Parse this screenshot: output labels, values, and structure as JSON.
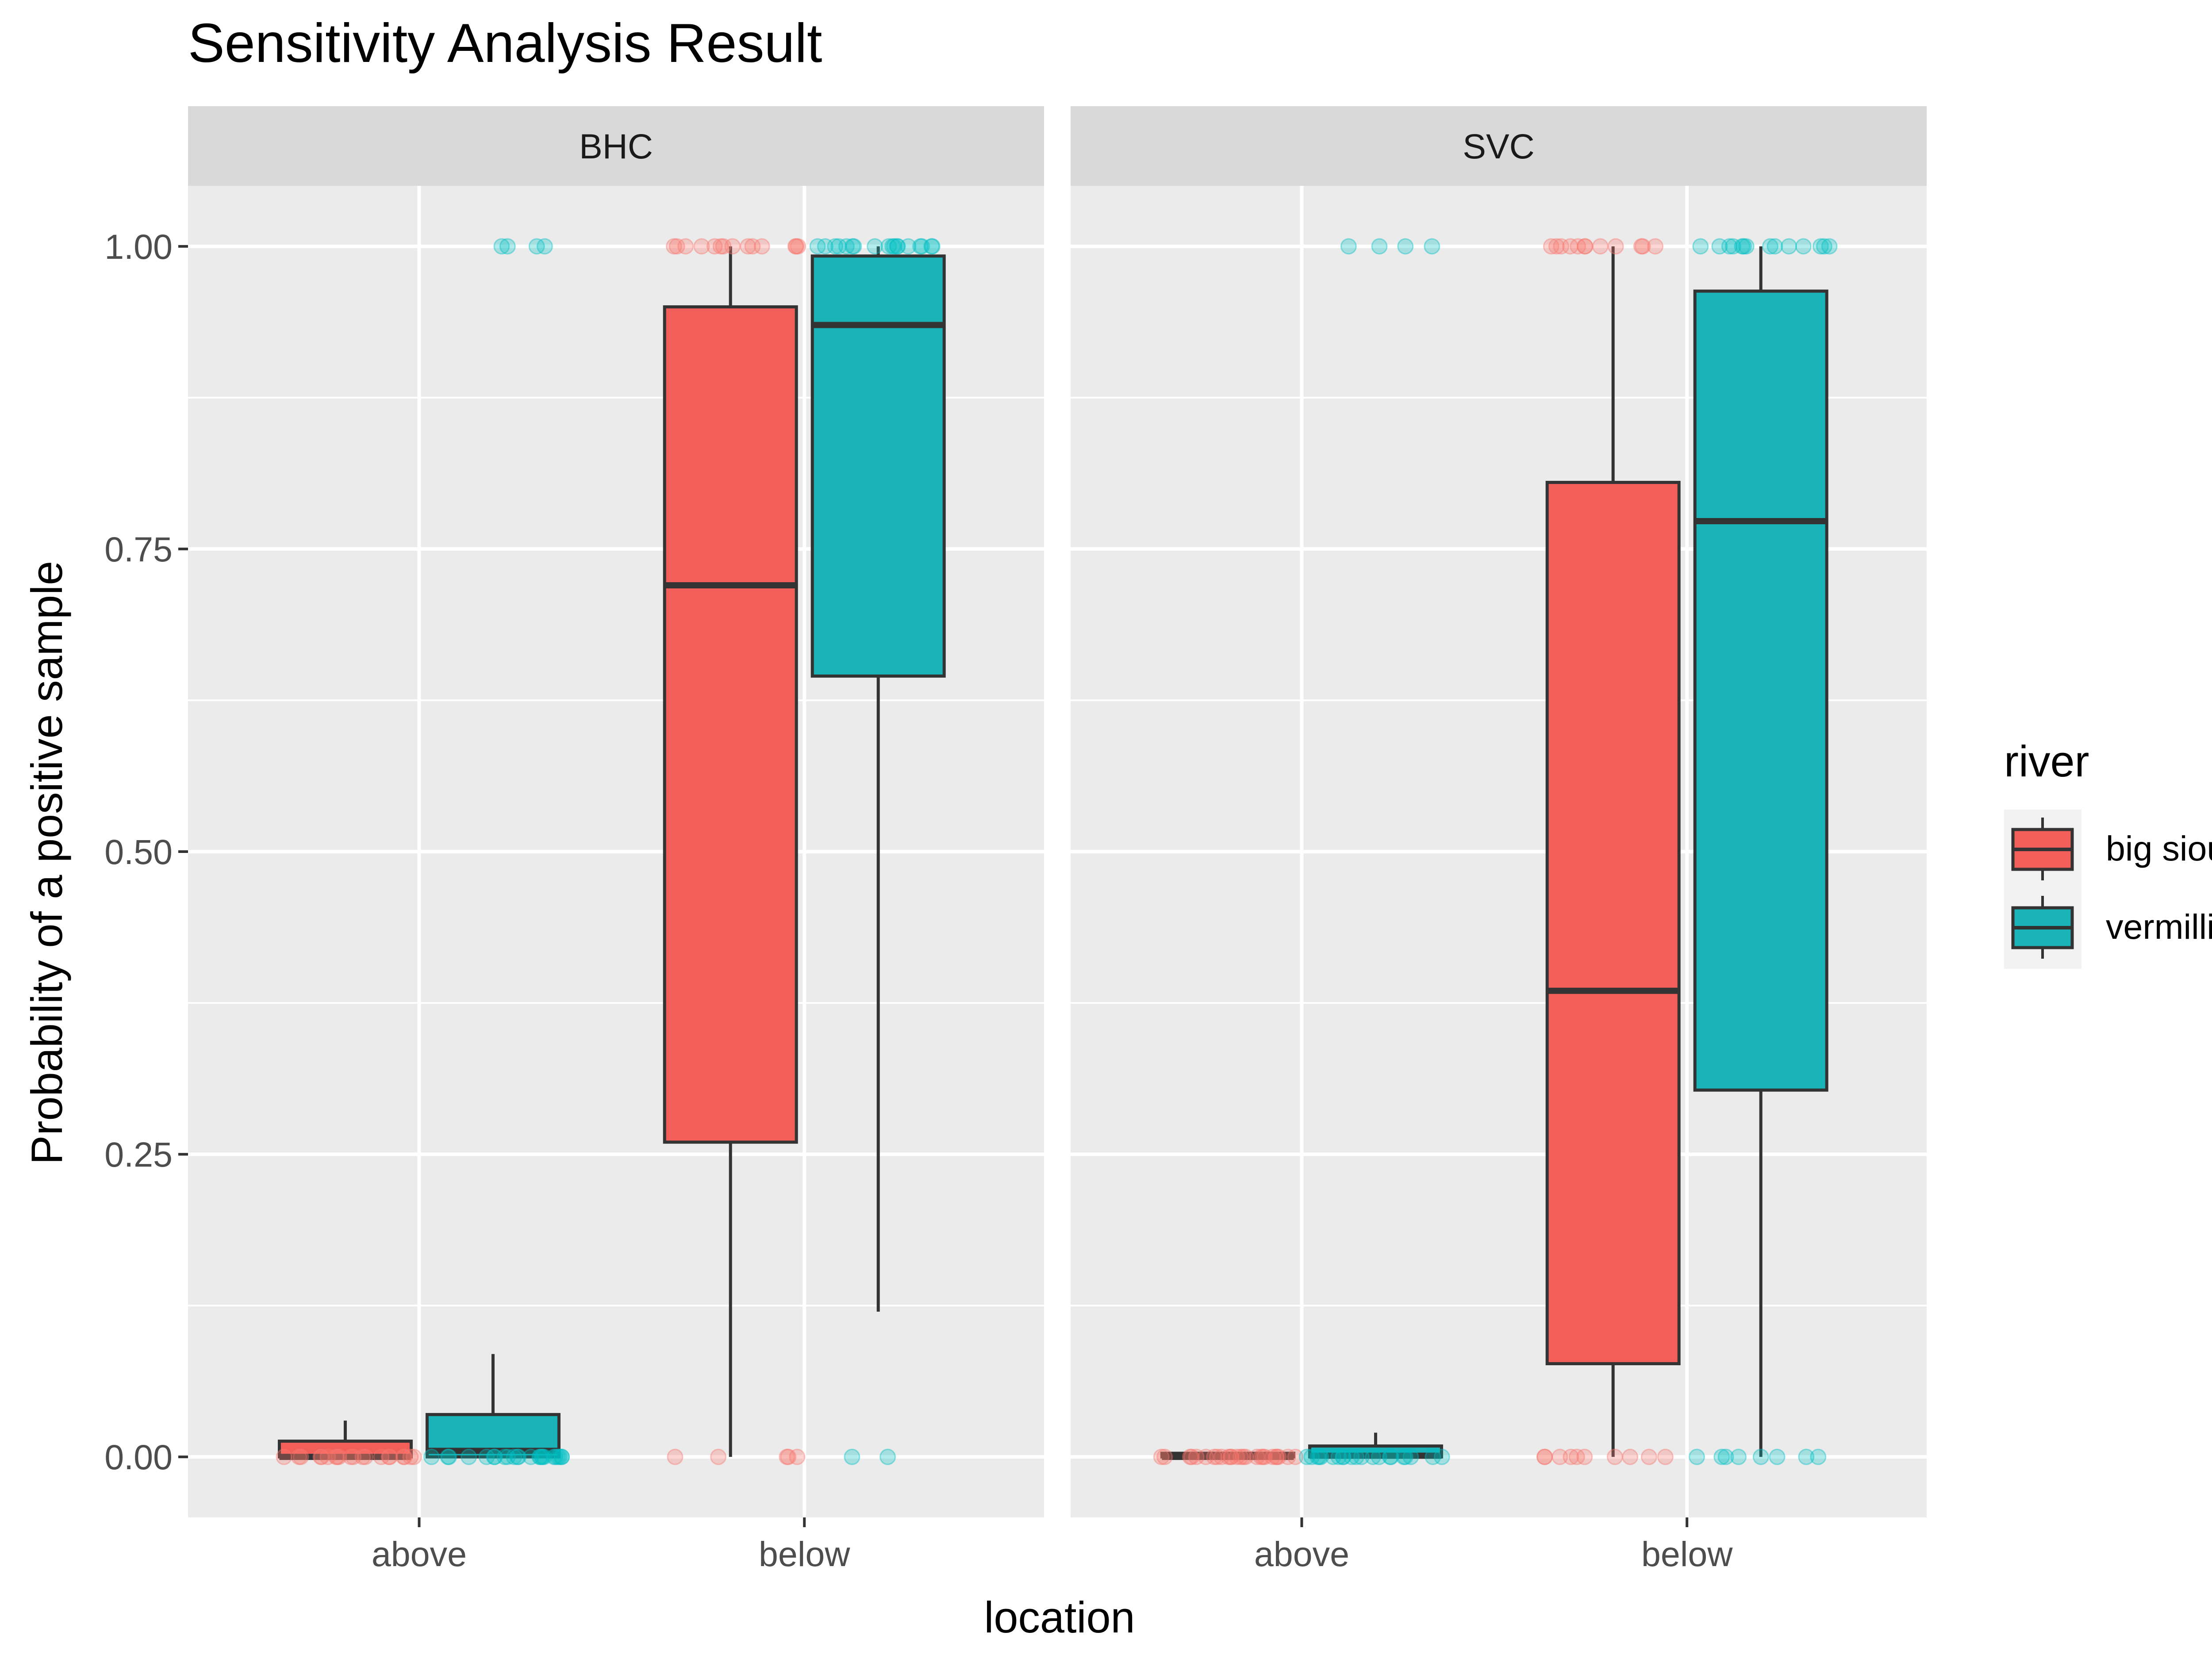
{
  "chart_data": {
    "type": "boxplot",
    "title": "Sensitivity Analysis Result",
    "xlabel": "location",
    "ylabel": "Probability of a positive sample",
    "ylim": [
      -0.05,
      1.05
    ],
    "y_ticks": [
      "0.00",
      "0.25",
      "0.50",
      "0.75",
      "1.00"
    ],
    "grid": true,
    "categories": [
      "above",
      "below"
    ],
    "legend": {
      "title": "river",
      "position": "right",
      "entries": [
        {
          "label": "big sioux",
          "color": "#F8766D",
          "box_color": "#F25F5A"
        },
        {
          "label": "vermillion",
          "color": "#00BFC4",
          "box_color": "#1AB3B8"
        }
      ]
    },
    "facets": [
      {
        "label": "BHC",
        "boxes": [
          {
            "location": "above",
            "river": "big sioux",
            "whisker_low": 0.0,
            "q1": 0.0,
            "median": 0.0,
            "q3": 0.013,
            "whisker_high": 0.03,
            "points": [
              0,
              0,
              0,
              0,
              0,
              0,
              0,
              0,
              0,
              0,
              0,
              0,
              0,
              0,
              0,
              0,
              0,
              0,
              0,
              0
            ]
          },
          {
            "location": "above",
            "river": "vermillion",
            "whisker_low": 0.0,
            "q1": 0.0,
            "median": 0.005,
            "q3": 0.035,
            "whisker_high": 0.085,
            "points": [
              0,
              0,
              0,
              0,
              0,
              0,
              0,
              0,
              0,
              0,
              0,
              0,
              0,
              0,
              0,
              0,
              0,
              0,
              0,
              0,
              0,
              0,
              0,
              0,
              1,
              1,
              1,
              1
            ]
          },
          {
            "location": "below",
            "river": "big sioux",
            "whisker_low": 0.0,
            "q1": 0.26,
            "median": 0.72,
            "q3": 0.95,
            "whisker_high": 1.0,
            "points": [
              1,
              1,
              1,
              1,
              1,
              1,
              1,
              1,
              1,
              1,
              1,
              1,
              1,
              1,
              0,
              0,
              0,
              0,
              0
            ]
          },
          {
            "location": "below",
            "river": "vermillion",
            "whisker_low": 0.12,
            "q1": 0.645,
            "median": 0.935,
            "q3": 0.992,
            "whisker_high": 1.0,
            "points": [
              1,
              1,
              1,
              1,
              1,
              1,
              1,
              1,
              1,
              1,
              1,
              1,
              1,
              1,
              1,
              1,
              1,
              1,
              0,
              0
            ]
          }
        ]
      },
      {
        "label": "SVC",
        "boxes": [
          {
            "location": "above",
            "river": "big sioux",
            "whisker_low": 0.0,
            "q1": 0.0,
            "median": 0.0,
            "q3": 0.003,
            "whisker_high": 0.003,
            "points": [
              0,
              0,
              0,
              0,
              0,
              0,
              0,
              0,
              0,
              0,
              0,
              0,
              0,
              0,
              0,
              0,
              0,
              0,
              0,
              0,
              0,
              0,
              0,
              0,
              0,
              0
            ]
          },
          {
            "location": "above",
            "river": "vermillion",
            "whisker_low": 0.0,
            "q1": 0.0,
            "median": 0.001,
            "q3": 0.009,
            "whisker_high": 0.02,
            "points": [
              0,
              0,
              0,
              0,
              0,
              0,
              0,
              0,
              0,
              0,
              0,
              0,
              0,
              0,
              0,
              0,
              0,
              0,
              0,
              0,
              0,
              1,
              1,
              1,
              1
            ]
          },
          {
            "location": "below",
            "river": "big sioux",
            "whisker_low": 0.0,
            "q1": 0.077,
            "median": 0.385,
            "q3": 0.805,
            "whisker_high": 1.0,
            "points": [
              1,
              1,
              1,
              1,
              1,
              1,
              1,
              1,
              1,
              1,
              1,
              1,
              0,
              0,
              0,
              0,
              0,
              0,
              0,
              0,
              0,
              0
            ]
          },
          {
            "location": "below",
            "river": "vermillion",
            "whisker_low": 0.0,
            "q1": 0.303,
            "median": 0.773,
            "q3": 0.963,
            "whisker_high": 1.0,
            "points": [
              1,
              1,
              1,
              1,
              1,
              1,
              1,
              1,
              1,
              1,
              1,
              1,
              1,
              1,
              0,
              0,
              0,
              0,
              0,
              0,
              0,
              0
            ]
          }
        ]
      }
    ]
  }
}
